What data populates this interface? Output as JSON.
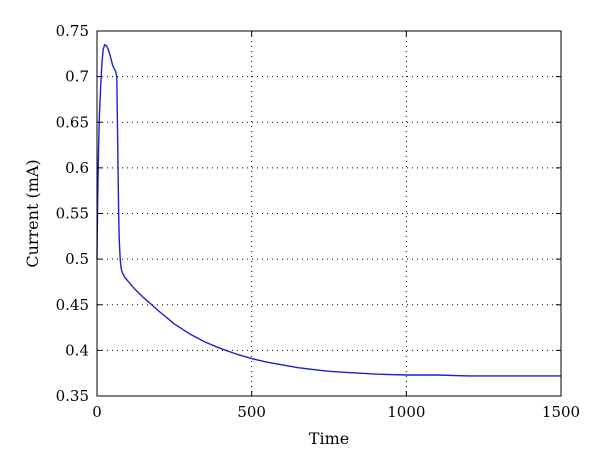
{
  "chart_data": {
    "type": "line",
    "xlabel": "Time",
    "ylabel": "Current (mA)",
    "xlim": [
      0,
      1500
    ],
    "ylim": [
      0.35,
      0.75
    ],
    "xticks": [
      0,
      500,
      1000,
      1500
    ],
    "xtick_labels": [
      "0",
      "500",
      "1000",
      "1500"
    ],
    "yticks": [
      0.35,
      0.4,
      0.45,
      0.5,
      0.55,
      0.6,
      0.65,
      0.7,
      0.75
    ],
    "ytick_labels": [
      "0.35",
      "0.4",
      "0.45",
      "0.5",
      "0.55",
      "0.6",
      "0.65",
      "0.7",
      "0.75"
    ],
    "grid": true,
    "legend": "none",
    "line_color": "#1f1fcf",
    "series": [
      {
        "x": [
          0,
          2,
          5,
          8,
          12,
          16,
          20,
          25,
          30,
          35,
          40,
          45,
          50,
          55,
          60,
          64,
          66,
          68,
          70,
          72,
          75,
          78,
          82,
          90,
          100,
          120,
          150,
          180,
          200,
          250,
          300,
          350,
          400,
          450,
          500,
          550,
          600,
          650,
          700,
          750,
          800,
          900,
          1000,
          1100,
          1200,
          1300,
          1400,
          1500
        ],
        "y": [
          0.5,
          0.56,
          0.62,
          0.66,
          0.69,
          0.715,
          0.73,
          0.735,
          0.734,
          0.731,
          0.726,
          0.72,
          0.713,
          0.709,
          0.706,
          0.7,
          0.65,
          0.6,
          0.55,
          0.52,
          0.5,
          0.49,
          0.485,
          0.48,
          0.476,
          0.468,
          0.458,
          0.449,
          0.443,
          0.429,
          0.418,
          0.409,
          0.402,
          0.396,
          0.391,
          0.387,
          0.384,
          0.381,
          0.379,
          0.377,
          0.376,
          0.374,
          0.373,
          0.373,
          0.372,
          0.372,
          0.372,
          0.372
        ]
      }
    ]
  }
}
